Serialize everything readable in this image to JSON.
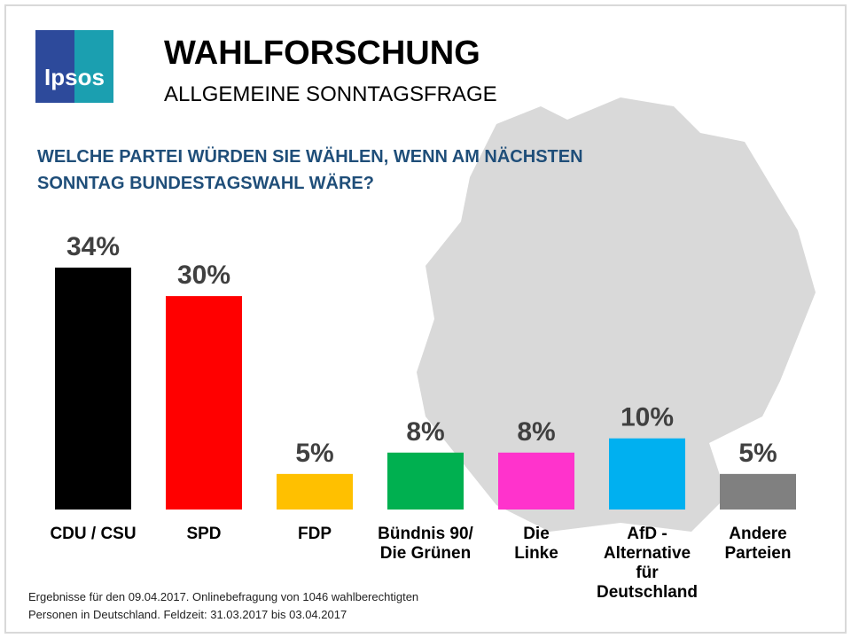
{
  "logo": "Ipsos",
  "chart_data": {
    "type": "bar",
    "title": "WAHLFORSCHUNG",
    "subtitle": "ALLGEMEINE SONNTAGSFRAGE",
    "question": "WELCHE PARTEI WÜRDEN SIE WÄHLEN, WENN AM NÄCHSTEN\nSONNTAG BUNDESTAGSWAHL WÄRE?",
    "categories": [
      "CDU / CSU",
      "SPD",
      "FDP",
      "Bündnis 90/\nDie Grünen",
      "Die\nLinke",
      "AfD -\nAlternative\nfür\nDeutschland",
      "Andere\nParteien"
    ],
    "values": [
      34,
      30,
      5,
      8,
      8,
      10,
      5
    ],
    "value_labels": [
      "34%",
      "30%",
      "5%",
      "8%",
      "8%",
      "10%",
      "5%"
    ],
    "colors": [
      "#000000",
      "#ff0000",
      "#ffc000",
      "#00b050",
      "#ff33cc",
      "#00b0f0",
      "#808080"
    ],
    "note": "Ergebnisse für den 09.04.2017. Onlinebefragung  von 1046 wahlberechtigten\nPersonen in Deutschland.  Feldzeit: 31.03.2017 bis 03.04.2017"
  }
}
